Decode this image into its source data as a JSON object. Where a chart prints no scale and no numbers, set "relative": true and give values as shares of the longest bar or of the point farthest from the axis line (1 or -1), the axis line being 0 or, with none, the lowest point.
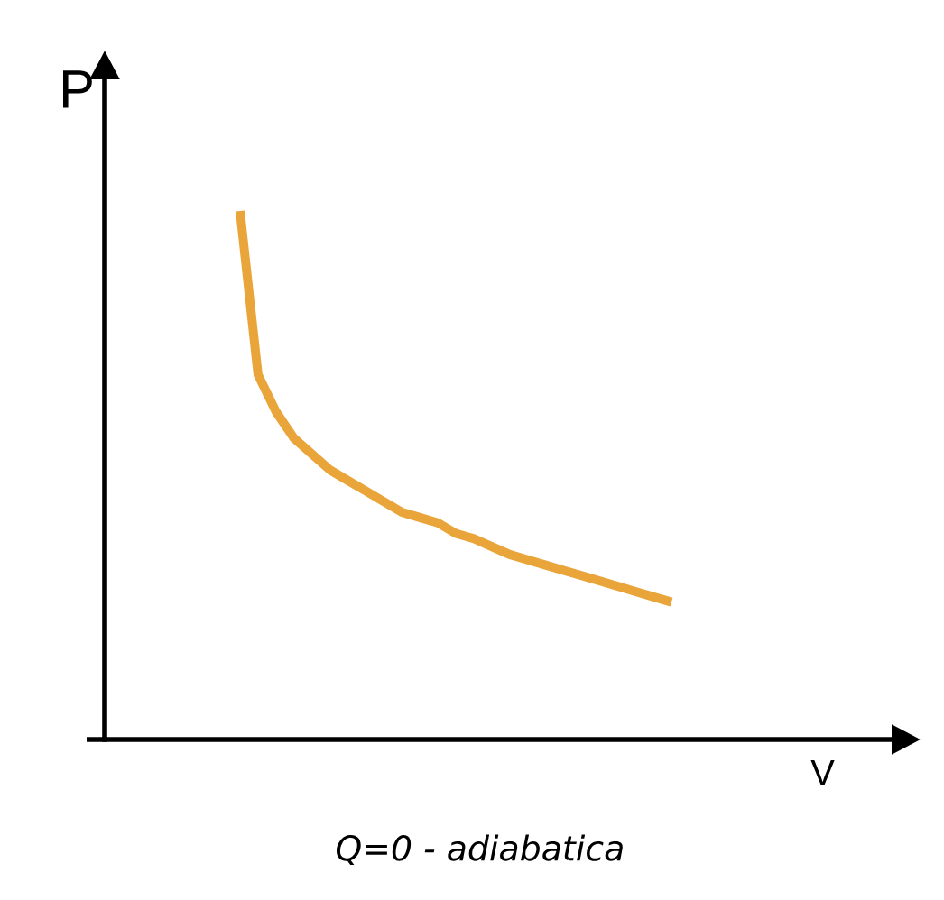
{
  "chart_data": {
    "type": "line",
    "relative": true,
    "xlabel": "V",
    "ylabel": "P",
    "annotations": [
      "Q=0 - adiabatica"
    ],
    "categories": [
      null,
      null,
      null,
      null,
      null,
      null,
      null,
      null,
      null,
      null,
      null,
      null,
      null,
      null,
      null,
      null,
      null,
      null,
      null,
      null,
      null,
      null,
      null,
      null,
      null
    ],
    "series": [
      {
        "color": "#e9a53a",
        "values": [
          1.0,
          0.69,
          0.62,
          0.57,
          0.54,
          0.51,
          0.49,
          0.47,
          0.45,
          0.43,
          0.42,
          0.41,
          0.39,
          0.38,
          0.365,
          0.35,
          0.34,
          0.33,
          0.32,
          0.31,
          0.3,
          0.29,
          0.28,
          0.27,
          0.26
        ]
      }
    ]
  }
}
